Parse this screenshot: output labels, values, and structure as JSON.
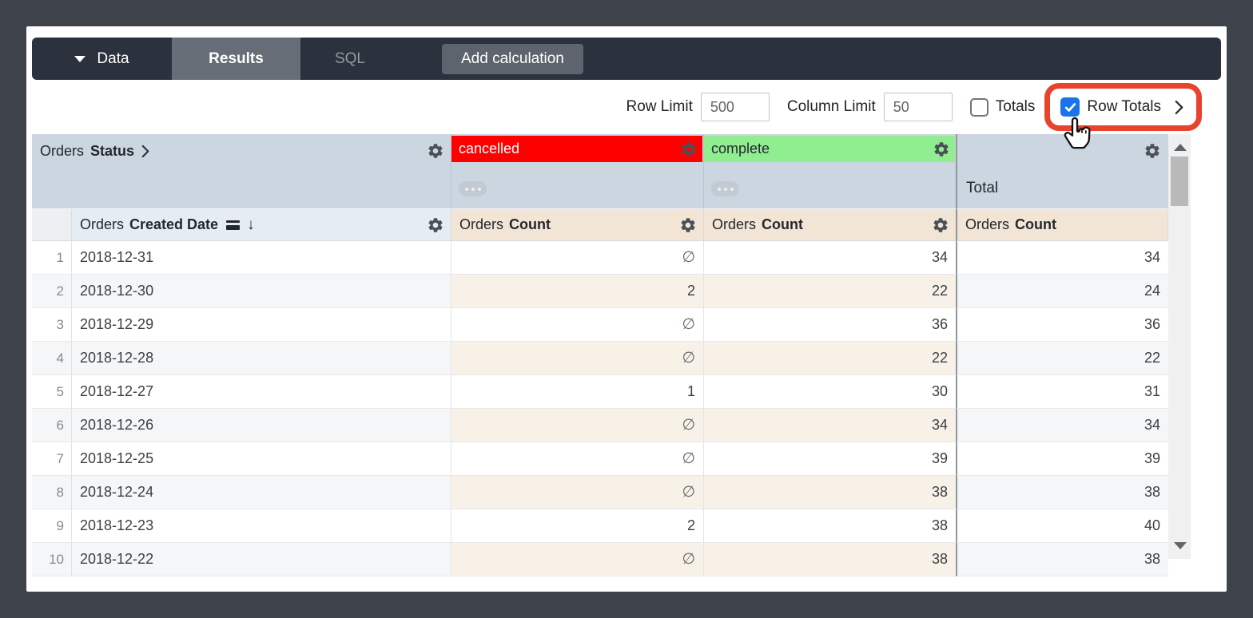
{
  "nav": {
    "data_label": "Data",
    "results_label": "Results",
    "sql_label": "SQL",
    "add_calc_label": "Add calculation"
  },
  "controls": {
    "row_limit_label": "Row Limit",
    "row_limit_value": "500",
    "column_limit_label": "Column Limit",
    "column_limit_value": "50",
    "totals_label": "Totals",
    "totals_checked": false,
    "row_totals_label": "Row Totals",
    "row_totals_checked": true
  },
  "icons": {
    "gear": "gear-icon",
    "sort_desc_glyph": "↓",
    "null_symbol": "∅"
  },
  "colors": {
    "highlight_red": "#e8432c",
    "checkbox_blue": "#1a73e8",
    "pivot_header_bg": "#ccd6e0",
    "measure_header_bg": "#f2e5d5"
  },
  "table": {
    "pivot_field": {
      "prefix": "Orders",
      "name": "Status"
    },
    "pivot_values": [
      {
        "label": "cancelled",
        "bg": "#ff0000",
        "text_color": "#ffffff"
      },
      {
        "label": "complete",
        "bg": "#90ee90",
        "text_color": "#23282e"
      }
    ],
    "total_header": "Total",
    "dimension": {
      "prefix": "Orders",
      "name": "Created Date"
    },
    "measure": {
      "prefix": "Orders",
      "name": "Count"
    },
    "rows": [
      {
        "num": 1,
        "date": "2018-12-31",
        "cancelled": null,
        "complete": 34,
        "total": 34
      },
      {
        "num": 2,
        "date": "2018-12-30",
        "cancelled": 2,
        "complete": 22,
        "total": 24
      },
      {
        "num": 3,
        "date": "2018-12-29",
        "cancelled": null,
        "complete": 36,
        "total": 36
      },
      {
        "num": 4,
        "date": "2018-12-28",
        "cancelled": null,
        "complete": 22,
        "total": 22
      },
      {
        "num": 5,
        "date": "2018-12-27",
        "cancelled": 1,
        "complete": 30,
        "total": 31
      },
      {
        "num": 6,
        "date": "2018-12-26",
        "cancelled": null,
        "complete": 34,
        "total": 34
      },
      {
        "num": 7,
        "date": "2018-12-25",
        "cancelled": null,
        "complete": 39,
        "total": 39
      },
      {
        "num": 8,
        "date": "2018-12-24",
        "cancelled": null,
        "complete": 38,
        "total": 38
      },
      {
        "num": 9,
        "date": "2018-12-23",
        "cancelled": 2,
        "complete": 38,
        "total": 40
      },
      {
        "num": 10,
        "date": "2018-12-22",
        "cancelled": null,
        "complete": 38,
        "total": 38
      }
    ]
  }
}
